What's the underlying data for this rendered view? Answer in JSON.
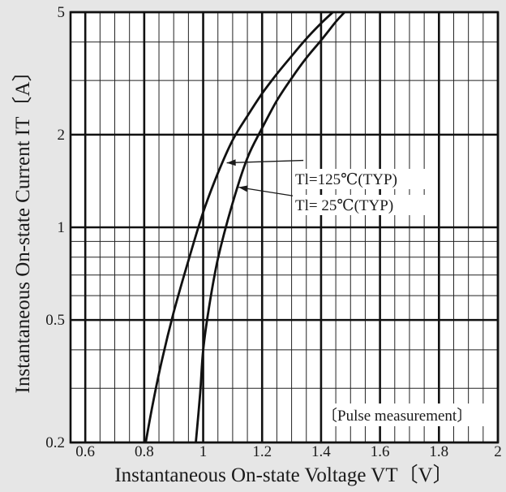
{
  "chart_data": {
    "type": "line",
    "xlabel": "Instantaneous On-state Voltage  VT〔V〕",
    "ylabel": "Instantaneous On-state Current  IT〔A〕",
    "xlim": [
      0.55,
      2.0
    ],
    "ylim": [
      0.2,
      5
    ],
    "y_scale": "log",
    "grid": true,
    "x_ticks": [
      0.6,
      0.8,
      1,
      1.2,
      1.4,
      1.6,
      1.8,
      2
    ],
    "x_tick_labels": [
      "0.6",
      "0.8",
      "1",
      "1.2",
      "1.4",
      "1.6",
      "1.8",
      "2"
    ],
    "y_ticks": [
      0.2,
      0.5,
      1,
      2,
      5
    ],
    "y_tick_labels": [
      "0.2",
      "0.5",
      "1",
      "2",
      "5"
    ],
    "y_minor_ticks": [
      0.3,
      0.4,
      0.6,
      0.7,
      0.8,
      0.9,
      3,
      4
    ],
    "series": [
      {
        "name": "Tl=125℃(TYP)",
        "points": [
          [
            0.805,
            0.2
          ],
          [
            0.83,
            0.27
          ],
          [
            0.86,
            0.37
          ],
          [
            0.9,
            0.53
          ],
          [
            0.95,
            0.78
          ],
          [
            1.0,
            1.12
          ],
          [
            1.05,
            1.5
          ],
          [
            1.1,
            1.92
          ],
          [
            1.15,
            2.3
          ],
          [
            1.2,
            2.72
          ],
          [
            1.25,
            3.15
          ],
          [
            1.3,
            3.6
          ],
          [
            1.35,
            4.1
          ],
          [
            1.4,
            4.6
          ],
          [
            1.44,
            5.0
          ]
        ]
      },
      {
        "name": "Tl= 25℃(TYP)",
        "points": [
          [
            0.975,
            0.2
          ],
          [
            0.99,
            0.29
          ],
          [
            1.0,
            0.4
          ],
          [
            1.02,
            0.55
          ],
          [
            1.05,
            0.79
          ],
          [
            1.1,
            1.2
          ],
          [
            1.15,
            1.68
          ],
          [
            1.2,
            2.1
          ],
          [
            1.25,
            2.58
          ],
          [
            1.3,
            3.05
          ],
          [
            1.35,
            3.55
          ],
          [
            1.4,
            4.05
          ],
          [
            1.45,
            4.65
          ],
          [
            1.48,
            5.0
          ]
        ]
      }
    ],
    "annotations": [
      {
        "text": "Tl=125℃(TYP)",
        "label_at": [
          1.34,
          1.65
        ],
        "arrow_to": [
          1.08,
          1.62
        ]
      },
      {
        "text": "Tl= 25℃(TYP)",
        "label_at": [
          1.34,
          1.25
        ],
        "arrow_to": [
          1.12,
          1.35
        ]
      },
      {
        "text": "〔Pulse measurement〕"
      }
    ]
  }
}
